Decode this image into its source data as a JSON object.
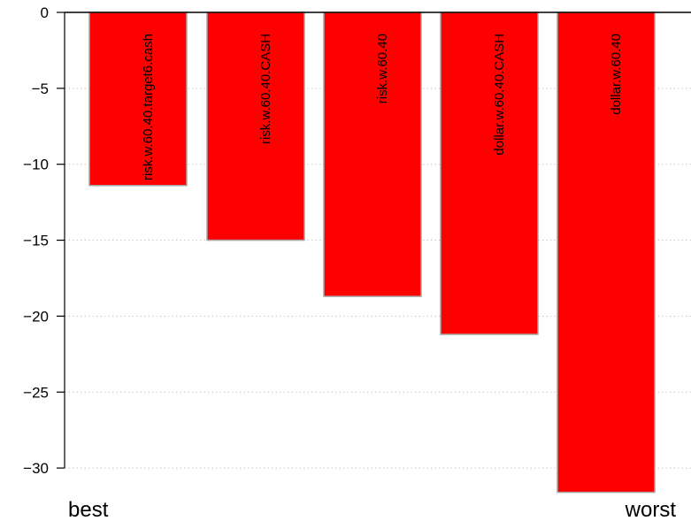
{
  "chart_data": {
    "type": "bar",
    "categories": [
      "risk.w.60.40.target6.cash",
      "risk.w.60.40.CASH",
      "risk.w.60.40",
      "dollar.w.60.40.CASH",
      "dollar.w.60.40"
    ],
    "values": [
      -11.4,
      -15.0,
      -18.7,
      -21.2,
      -31.6
    ],
    "ylim": [
      -31.8,
      0
    ],
    "yticks": [
      0,
      -5,
      -10,
      -15,
      -20,
      -25,
      -30
    ],
    "ytick_labels": [
      "0",
      "−5",
      "−10",
      "−15",
      "−20",
      "−25",
      "−30"
    ],
    "grid": "horizontal-dotted",
    "bar_color": "#ff0000",
    "bar_border_color": "#a6a6a6",
    "best_label": "best",
    "worst_label": "worst"
  }
}
